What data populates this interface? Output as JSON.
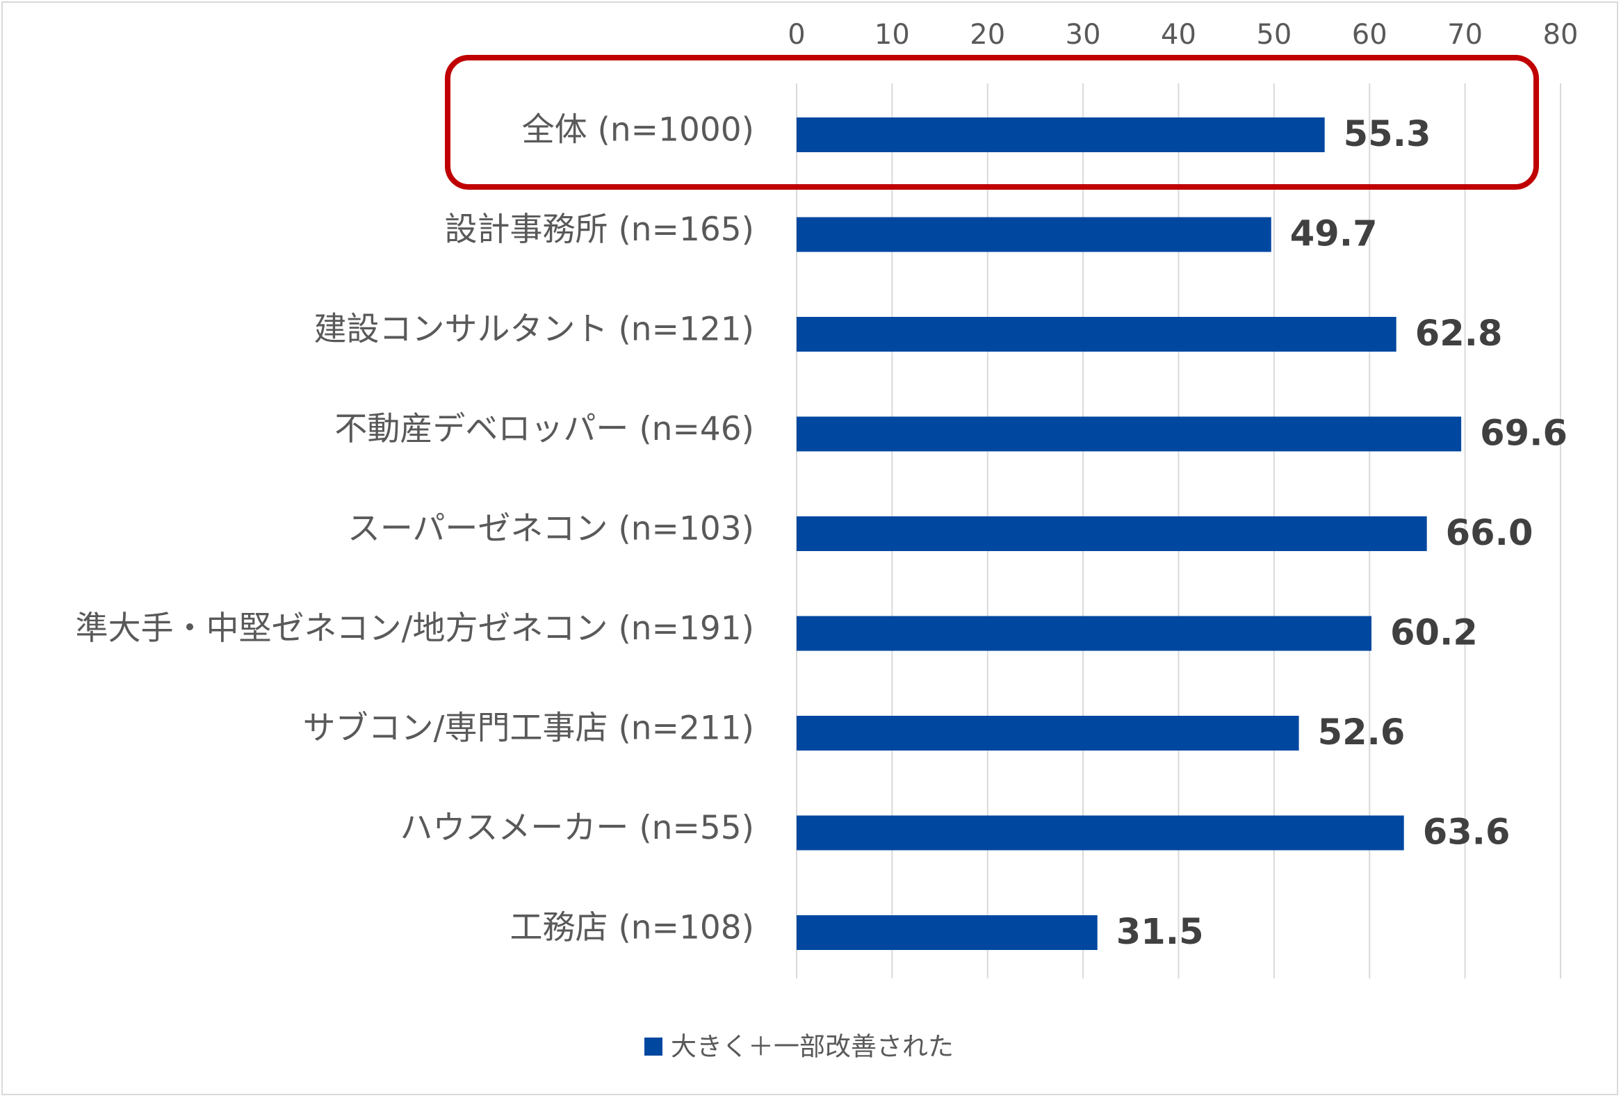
{
  "chart_data": {
    "type": "bar",
    "orientation": "horizontal",
    "categories": [
      "全体 (n=1000)",
      "設計事務所 (n=165)",
      "建設コンサルタント (n=121)",
      "不動産デベロッパー (n=46)",
      "スーパーゼネコン (n=103)",
      "準大手・中堅ゼネコン/地方ゼネコン (n=191)",
      "サブコン/専門工事店 (n=211)",
      "ハウスメーカー (n=55)",
      "工務店 (n=108)"
    ],
    "values": [
      55.3,
      49.7,
      62.8,
      69.6,
      66.0,
      60.2,
      52.6,
      63.6,
      31.5
    ],
    "value_labels": [
      "55.3",
      "49.7",
      "62.8",
      "69.6",
      "66.0",
      "60.2",
      "52.6",
      "63.6",
      "31.5"
    ],
    "series_name": "大きく＋一部改善された",
    "xlim": [
      0,
      80
    ],
    "xticks": [
      "0",
      "10",
      "20",
      "30",
      "40",
      "50",
      "60",
      "70",
      "80"
    ],
    "axis_position": "top",
    "grid": true,
    "legend_position": "bottom",
    "highlighted_category": "全体 (n=1000)",
    "colors": {
      "bar": "#0047a0",
      "highlight_box": "#c00000",
      "grid": "#d9d9d9",
      "value_text": "#404040",
      "label_text": "#595959"
    }
  }
}
